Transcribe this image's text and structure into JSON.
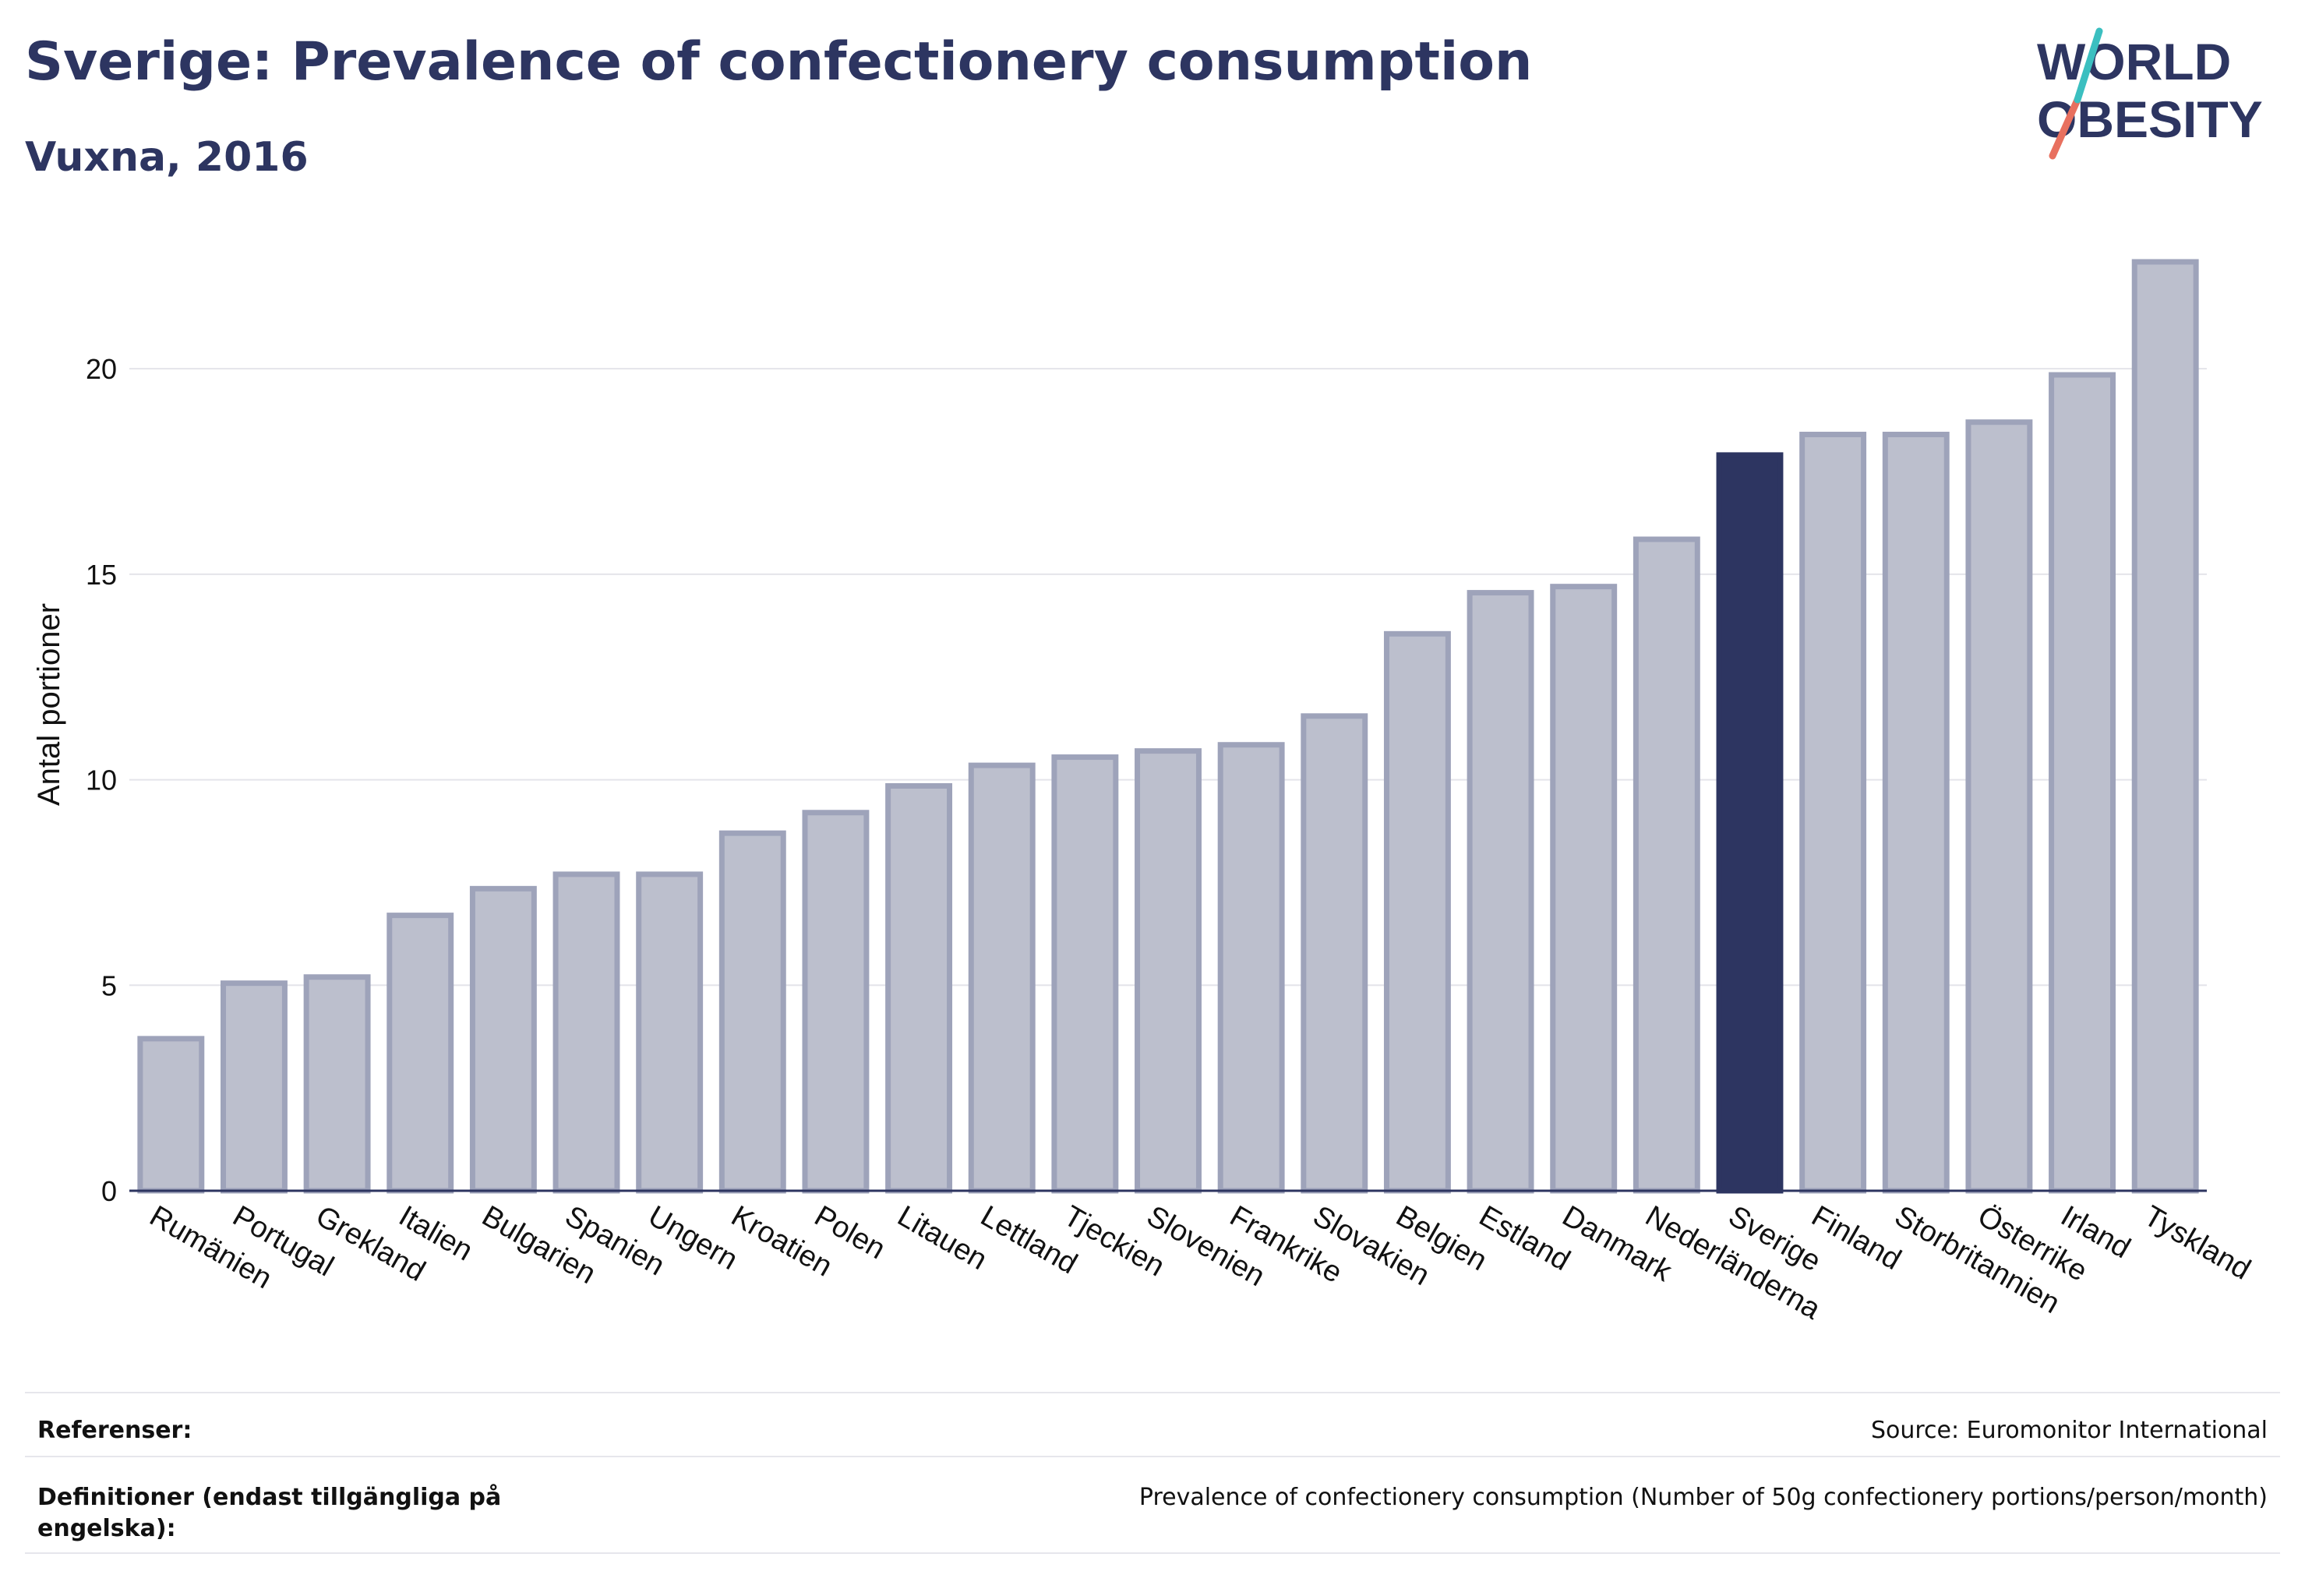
{
  "header": {
    "title": "Sverige: Prevalence of confectionery consumption",
    "subtitle": "Vuxna, 2016"
  },
  "logo": {
    "line1": "WORLD",
    "line2": "OBESITY",
    "text_color": "#2d3561",
    "slash_colors": [
      "#e8705f",
      "#3bbfc0"
    ]
  },
  "colors": {
    "bar": "#bcbfcd",
    "bar_stroke": "#9ea3ba",
    "highlight": "#2d3561",
    "grid": "#e4e4ea",
    "axis": "#2d3561"
  },
  "chart_data": {
    "type": "bar",
    "title": "",
    "xlabel": "",
    "ylabel": "Antal portioner",
    "ylim": [
      0,
      22.6
    ],
    "yticks": [
      0,
      5,
      10,
      15,
      20
    ],
    "grid": true,
    "highlight_category": "Sverige",
    "categories": [
      "Rumänien",
      "Portugal",
      "Grekland",
      "Italien",
      "Bulgarien",
      "Spanien",
      "Ungern",
      "Kroatien",
      "Polen",
      "Litauen",
      "Lettland",
      "Tjeckien",
      "Slovenien",
      "Frankrike",
      "Slovakien",
      "Belgien",
      "Estland",
      "Danmark",
      "Nederländerna",
      "Sverige",
      "Finland",
      "Storbritannien",
      "Österrike",
      "Irland",
      "Tyskland"
    ],
    "values": [
      3.7,
      5.05,
      5.2,
      6.7,
      7.35,
      7.7,
      7.7,
      8.7,
      9.2,
      9.85,
      10.35,
      10.55,
      10.7,
      10.85,
      11.55,
      13.55,
      14.55,
      14.7,
      15.85,
      17.9,
      18.4,
      18.4,
      18.7,
      19.85,
      22.6
    ]
  },
  "footer": {
    "references_label": "Referenser:",
    "references_value": "Source: Euromonitor International",
    "definitions_label": "Definitioner (endast tillgängliga på engelska):",
    "definitions_value": "Prevalence of confectionery consumption (Number of 50g confectionery portions/person/month)"
  }
}
